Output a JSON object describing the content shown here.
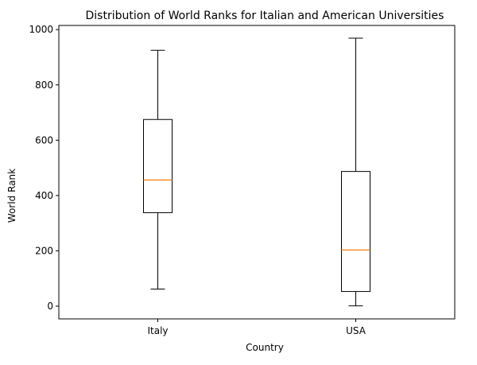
{
  "chart_data": {
    "type": "box",
    "title": "Distribution of World Ranks for Italian and American Universities",
    "xlabel": "Country",
    "ylabel": "World Rank",
    "categories": [
      "Italy",
      "USA"
    ],
    "boxes": [
      {
        "name": "Italy",
        "whisker_low": 62,
        "q1": 338,
        "median": 456,
        "q3": 675,
        "whisker_high": 925
      },
      {
        "name": "USA",
        "whisker_low": 1,
        "q1": 53,
        "median": 203,
        "q3": 487,
        "whisker_high": 969
      }
    ],
    "ylim": [
      -46,
      1015
    ],
    "yticks": [
      0,
      200,
      400,
      600,
      800,
      1000
    ],
    "grid": false,
    "colors": {
      "box": "#000000",
      "median": "#ff7f0e",
      "axes": "#000000",
      "background": "#ffffff"
    }
  }
}
